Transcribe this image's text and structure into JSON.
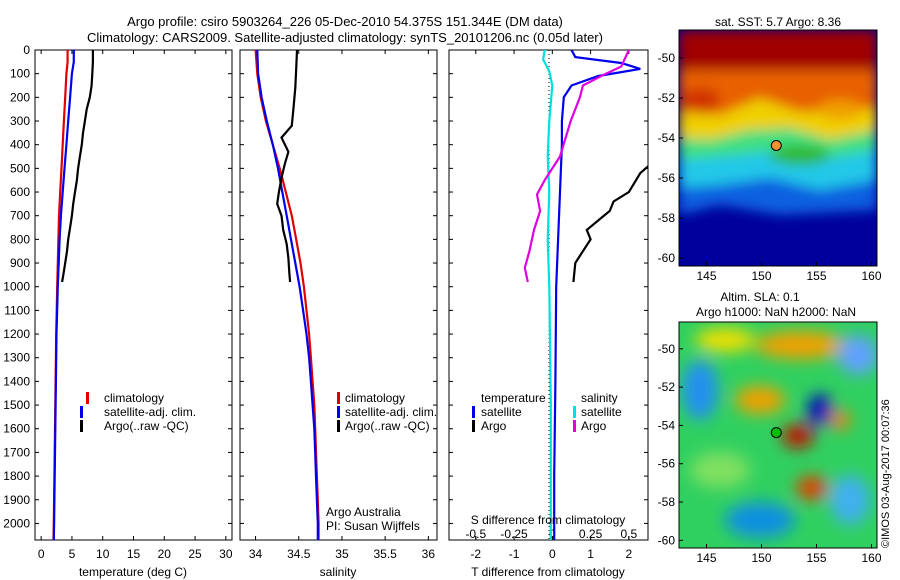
{
  "header": {
    "title_line1": "Argo profile: csiro 5903264_226 05-Dec-2010 54.375S 151.344E (DM data)",
    "title_line2": "Climatology: CARS2009. Satellite-adjusted climatology: synTS_20101206.nc (0.05d later)"
  },
  "colors": {
    "climatology": "#e00000",
    "satellite": "#0000ee",
    "argo": "#000000",
    "salinity_satellite": "#00e0e0",
    "salinity_argo": "#e000e0"
  },
  "chart_data": [
    {
      "type": "line",
      "id": "temperature",
      "xlabel": "temperature (deg C)",
      "ylabel": "",
      "xlim": [
        -1,
        31
      ],
      "ylim": [
        2070,
        0
      ],
      "xticks": [
        0,
        5,
        10,
        15,
        20,
        25,
        30
      ],
      "yticks": [
        0,
        100,
        200,
        300,
        400,
        500,
        600,
        700,
        800,
        900,
        1000,
        1100,
        1200,
        1300,
        1400,
        1500,
        1600,
        1700,
        1800,
        1900,
        2000
      ],
      "legend": [
        "climatology",
        "satellite-adj. clim.",
        "Argo(..raw -QC)"
      ],
      "series": [
        {
          "name": "climatology",
          "color_key": "climatology",
          "points": [
            [
              4.3,
              0
            ],
            [
              4.3,
              50
            ],
            [
              4.1,
              100
            ],
            [
              3.9,
              200
            ],
            [
              3.7,
              300
            ],
            [
              3.5,
              400
            ],
            [
              3.3,
              500
            ],
            [
              3.1,
              600
            ],
            [
              2.9,
              700
            ],
            [
              2.8,
              800
            ],
            [
              2.7,
              900
            ],
            [
              2.6,
              1000
            ],
            [
              2.45,
              1200
            ],
            [
              2.35,
              1400
            ],
            [
              2.25,
              1600
            ],
            [
              2.15,
              1800
            ],
            [
              2.05,
              2000
            ],
            [
              2.0,
              2070
            ]
          ]
        },
        {
          "name": "satellite-adj. clim.",
          "color_key": "satellite",
          "points": [
            [
              5.3,
              0
            ],
            [
              5.3,
              50
            ],
            [
              5.0,
              100
            ],
            [
              4.7,
              200
            ],
            [
              4.4,
              300
            ],
            [
              4.1,
              400
            ],
            [
              3.8,
              500
            ],
            [
              3.5,
              600
            ],
            [
              3.2,
              700
            ],
            [
              3.0,
              800
            ],
            [
              2.85,
              900
            ],
            [
              2.7,
              1000
            ],
            [
              2.5,
              1200
            ],
            [
              2.4,
              1400
            ],
            [
              2.3,
              1600
            ],
            [
              2.2,
              1800
            ],
            [
              2.1,
              2000
            ],
            [
              2.05,
              2070
            ]
          ]
        },
        {
          "name": "Argo(..raw -QC)",
          "color_key": "argo",
          "points": [
            [
              8.4,
              0
            ],
            [
              8.4,
              50
            ],
            [
              8.3,
              100
            ],
            [
              8.2,
              150
            ],
            [
              7.9,
              200
            ],
            [
              7.4,
              250
            ],
            [
              7.1,
              300
            ],
            [
              6.8,
              350
            ],
            [
              6.6,
              400
            ],
            [
              6.3,
              450
            ],
            [
              6.0,
              500
            ],
            [
              5.8,
              550
            ],
            [
              5.5,
              600
            ],
            [
              5.2,
              650
            ],
            [
              5.0,
              700
            ],
            [
              4.7,
              750
            ],
            [
              4.4,
              800
            ],
            [
              4.2,
              850
            ],
            [
              3.9,
              900
            ],
            [
              3.6,
              950
            ],
            [
              3.4,
              980
            ]
          ]
        }
      ]
    },
    {
      "type": "line",
      "id": "salinity",
      "xlabel": "salinity",
      "ylabel": "",
      "xlim": [
        33.82,
        36.1
      ],
      "ylim": [
        2070,
        0
      ],
      "xticks": [
        34,
        34.5,
        35,
        35.5,
        36
      ],
      "xtick_labels": [
        "34",
        "34.5",
        "35",
        "35.5",
        "36"
      ],
      "legend": [
        "climatology",
        "satellite-adj. clim.",
        "Argo(..raw -QC)"
      ],
      "annotation": [
        "Argo Australia",
        "PI: Susan Wijffels"
      ],
      "series": [
        {
          "name": "climatology",
          "color_key": "climatology",
          "points": [
            [
              34.0,
              0
            ],
            [
              34.02,
              100
            ],
            [
              34.06,
              200
            ],
            [
              34.12,
              300
            ],
            [
              34.2,
              400
            ],
            [
              34.28,
              500
            ],
            [
              34.35,
              600
            ],
            [
              34.42,
              700
            ],
            [
              34.47,
              800
            ],
            [
              34.52,
              900
            ],
            [
              34.56,
              1000
            ],
            [
              34.59,
              1100
            ],
            [
              34.62,
              1200
            ],
            [
              34.64,
              1300
            ],
            [
              34.66,
              1400
            ],
            [
              34.68,
              1500
            ],
            [
              34.69,
              1600
            ],
            [
              34.7,
              1700
            ],
            [
              34.71,
              1800
            ],
            [
              34.72,
              1900
            ],
            [
              34.73,
              2000
            ],
            [
              34.73,
              2070
            ]
          ]
        },
        {
          "name": "satellite-adj. clim.",
          "color_key": "satellite",
          "points": [
            [
              34.02,
              0
            ],
            [
              34.03,
              100
            ],
            [
              34.07,
              200
            ],
            [
              34.13,
              300
            ],
            [
              34.2,
              400
            ],
            [
              34.26,
              500
            ],
            [
              34.31,
              600
            ],
            [
              34.36,
              700
            ],
            [
              34.41,
              800
            ],
            [
              34.46,
              900
            ],
            [
              34.51,
              1000
            ],
            [
              34.55,
              1100
            ],
            [
              34.59,
              1200
            ],
            [
              34.62,
              1300
            ],
            [
              34.64,
              1400
            ],
            [
              34.66,
              1500
            ],
            [
              34.68,
              1600
            ],
            [
              34.69,
              1700
            ],
            [
              34.7,
              1800
            ],
            [
              34.71,
              1900
            ],
            [
              34.72,
              2000
            ],
            [
              34.72,
              2070
            ]
          ]
        },
        {
          "name": "Argo(..raw -QC)",
          "color_key": "argo",
          "points": [
            [
              34.48,
              0
            ],
            [
              34.47,
              80
            ],
            [
              34.46,
              160
            ],
            [
              34.44,
              240
            ],
            [
              34.42,
              320
            ],
            [
              34.3,
              370
            ],
            [
              34.38,
              430
            ],
            [
              34.34,
              480
            ],
            [
              34.3,
              540
            ],
            [
              34.27,
              600
            ],
            [
              34.25,
              650
            ],
            [
              34.3,
              700
            ],
            [
              34.32,
              760
            ],
            [
              34.36,
              820
            ],
            [
              34.38,
              880
            ],
            [
              34.39,
              940
            ],
            [
              34.4,
              980
            ]
          ]
        }
      ]
    },
    {
      "type": "line",
      "id": "differences",
      "xlabel": "T difference from climatology",
      "xlabel2": "S difference from climatology",
      "ylabel": "",
      "xlim": [
        -2.7,
        2.5
      ],
      "xlim_salinity": [
        -0.675,
        0.625
      ],
      "ylim": [
        2070,
        0
      ],
      "xticks": [
        -2,
        -1,
        0,
        1,
        2
      ],
      "xtick_labels": [
        "-2",
        "-1",
        "0",
        "1",
        "2"
      ],
      "xticks_salinity": [
        -0.5,
        -0.25,
        0,
        0.25,
        0.5
      ],
      "xtick_labels_salinity": [
        "-0.5",
        "-0.25",
        "0",
        "0.25",
        "0.5"
      ],
      "legend_title_temperature": "temperature",
      "legend_title_salinity": "salinity",
      "legend_labels": [
        "satellite",
        "Argo",
        "satellite",
        "Argo"
      ],
      "series": [
        {
          "name": "satellite",
          "variable": "temperature",
          "color_key": "satellite",
          "points": [
            [
              0.5,
              0
            ],
            [
              0.6,
              30
            ],
            [
              1.8,
              55
            ],
            [
              2.3,
              80
            ],
            [
              1.2,
              110
            ],
            [
              0.5,
              150
            ],
            [
              0.3,
              200
            ],
            [
              0.25,
              300
            ],
            [
              0.25,
              400
            ],
            [
              0.2,
              600
            ],
            [
              0.15,
              800
            ],
            [
              0.1,
              1000
            ],
            [
              0.08,
              1400
            ],
            [
              0.05,
              1800
            ],
            [
              0.05,
              2070
            ]
          ]
        },
        {
          "name": "Argo",
          "variable": "temperature",
          "color_key": "argo",
          "points": [
            [
              3.3,
              400
            ],
            [
              2.8,
              450
            ],
            [
              2.3,
              520
            ],
            [
              2.0,
              600
            ],
            [
              1.6,
              640
            ],
            [
              1.5,
              680
            ],
            [
              1.2,
              720
            ],
            [
              0.9,
              760
            ],
            [
              1.0,
              800
            ],
            [
              0.8,
              850
            ],
            [
              0.6,
              900
            ],
            [
              0.55,
              980
            ]
          ]
        },
        {
          "name": "satellite",
          "variable": "salinity",
          "color_key": "salinity_satellite",
          "points": [
            [
              -0.05,
              0
            ],
            [
              -0.06,
              40
            ],
            [
              -0.02,
              90
            ],
            [
              0.0,
              150
            ],
            [
              -0.02,
              300
            ],
            [
              -0.03,
              450
            ],
            [
              -0.02,
              600
            ],
            [
              -0.03,
              800
            ],
            [
              -0.02,
              1000
            ],
            [
              -0.01,
              1500
            ],
            [
              -0.01,
              2070
            ]
          ]
        },
        {
          "name": "Argo",
          "variable": "salinity",
          "color_key": "salinity_argo",
          "points": [
            [
              0.5,
              0
            ],
            [
              0.45,
              70
            ],
            [
              0.35,
              100
            ],
            [
              0.2,
              150
            ],
            [
              0.18,
              200
            ],
            [
              0.12,
              300
            ],
            [
              0.05,
              450
            ],
            [
              -0.05,
              550
            ],
            [
              -0.1,
              610
            ],
            [
              -0.08,
              680
            ],
            [
              -0.12,
              760
            ],
            [
              -0.15,
              850
            ],
            [
              -0.18,
              920
            ],
            [
              -0.16,
              980
            ]
          ]
        }
      ]
    },
    {
      "type": "heatmap",
      "id": "sat_sst_map",
      "title": "sat. SST: 5.7 Argo: 8.36",
      "xlim": [
        142.5,
        160.5
      ],
      "ylim": [
        -60.4,
        -48.6
      ],
      "xticks": [
        145,
        150,
        155,
        160
      ],
      "yticks": [
        -50,
        -52,
        -54,
        -56,
        -58,
        -60
      ],
      "colorscale": "jet",
      "marker": {
        "lon": 151.344,
        "lat": -54.375,
        "color": "#f09030"
      }
    },
    {
      "type": "heatmap",
      "id": "altim_sla_map",
      "title": "Altim. SLA: 0.1",
      "subtitle": "Argo h1000: NaN h2000: NaN",
      "xlim": [
        142.5,
        160.5
      ],
      "ylim": [
        -60.4,
        -48.6
      ],
      "xticks": [
        145,
        150,
        155,
        160
      ],
      "yticks": [
        -50,
        -52,
        -54,
        -56,
        -58,
        -60
      ],
      "colorscale": "jet",
      "marker": {
        "lon": 151.344,
        "lat": -54.375,
        "color": "#00c000"
      }
    }
  ],
  "watermark": "©IMOS 03-Aug-2017 00:07:36"
}
